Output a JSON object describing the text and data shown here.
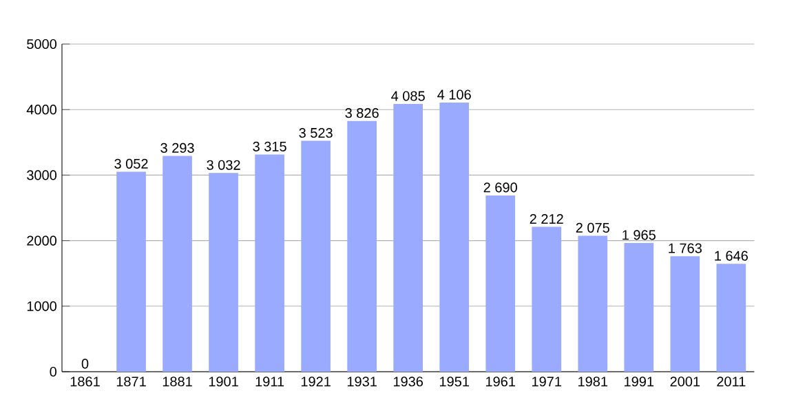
{
  "chart_data": {
    "type": "bar",
    "categories": [
      "1861",
      "1871",
      "1881",
      "1901",
      "1911",
      "1921",
      "1931",
      "1936",
      "1951",
      "1961",
      "1971",
      "1981",
      "1991",
      "2001",
      "2011"
    ],
    "values": [
      0,
      3052,
      3293,
      3032,
      3315,
      3523,
      3826,
      4085,
      4106,
      2690,
      2212,
      2075,
      1965,
      1763,
      1646
    ],
    "value_labels": [
      "0",
      "3 052",
      "3 293",
      "3 032",
      "3 315",
      "3 523",
      "3 826",
      "4 085",
      "4 106",
      "2 690",
      "2 212",
      "2 075",
      "1 965",
      "1 763",
      "1 646"
    ],
    "color": "#99aaff",
    "ylim": [
      0,
      5000
    ],
    "yticks": [
      0,
      1000,
      2000,
      3000,
      4000,
      5000
    ],
    "grid": "y"
  }
}
